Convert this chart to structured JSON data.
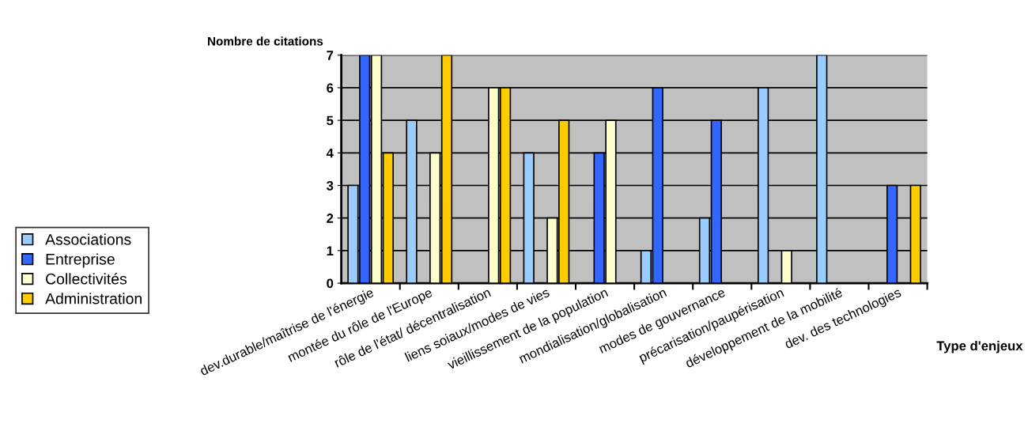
{
  "chart_data": {
    "type": "bar",
    "xlabel": "Type d'enjeux",
    "ylabel": "Nombre de citations",
    "categories": [
      "dev.durable/maîtrise de l'énergie",
      "montée du rôle de l'Europe",
      "rôle de l'état/ décentralisation",
      "liens soiaux/modes de vies",
      "vieillissement de la population",
      "mondialisation/globalisation",
      "modes de gouvernance",
      "précarisation/paupérisation",
      "développement de la mobilité",
      "dev. des technologies"
    ],
    "series": [
      {
        "name": "Associations",
        "color": "#99ccff",
        "values": [
          3,
          5,
          null,
          4,
          null,
          1,
          2,
          6,
          7,
          null
        ]
      },
      {
        "name": "Entreprise",
        "color": "#3366ff",
        "values": [
          7,
          null,
          null,
          null,
          4,
          6,
          5,
          null,
          null,
          3
        ]
      },
      {
        "name": "Collectivités",
        "color": "#ffffcc",
        "values": [
          7,
          4,
          6,
          2,
          5,
          null,
          null,
          1,
          null,
          null
        ]
      },
      {
        "name": "Administration",
        "color": "#ffcc00",
        "values": [
          4,
          7,
          6,
          5,
          null,
          null,
          null,
          null,
          null,
          3
        ]
      }
    ],
    "ylim": [
      0,
      7
    ],
    "yticks": [
      0,
      1,
      2,
      3,
      4,
      5,
      6,
      7
    ],
    "grid": "y",
    "legend": "left"
  }
}
